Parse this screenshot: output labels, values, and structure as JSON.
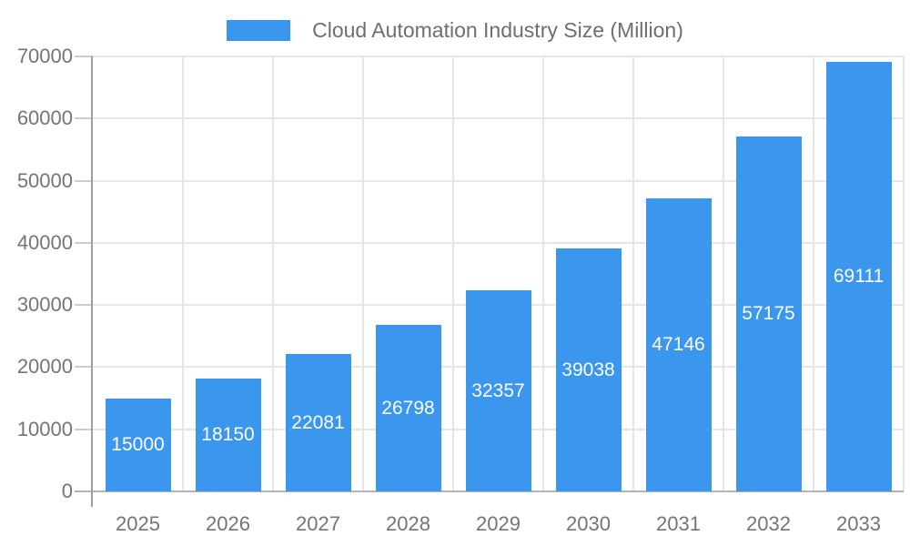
{
  "legend": {
    "series_label": "Cloud Automation Industry Size (Million)"
  },
  "chart_data": {
    "type": "bar",
    "title": "Cloud Automation Industry Size (Million)",
    "categories": [
      "2025",
      "2026",
      "2027",
      "2028",
      "2029",
      "2030",
      "2031",
      "2032",
      "2033"
    ],
    "values": [
      15000,
      18150,
      22081,
      26798,
      32357,
      39038,
      47146,
      57175,
      69111
    ],
    "xlabel": "",
    "ylabel": "",
    "ylim": [
      0,
      70000
    ],
    "ytick_step": 10000,
    "ytick_labels": [
      "0",
      "10000",
      "20000",
      "30000",
      "40000",
      "50000",
      "60000",
      "70000"
    ],
    "grid": true,
    "legend_position": "top-center",
    "value_label_position": "inside-center",
    "colors": {
      "bar": "#3B97EE",
      "value_label": "#ffffff",
      "axis_text": "#757575",
      "title_text": "#6e6e6e",
      "gridline": "#e6e6e6",
      "tick": "#cccccc",
      "baseline": "#b3b3b3",
      "axis_line": "#9e9e9e",
      "background": "#ffffff"
    }
  }
}
